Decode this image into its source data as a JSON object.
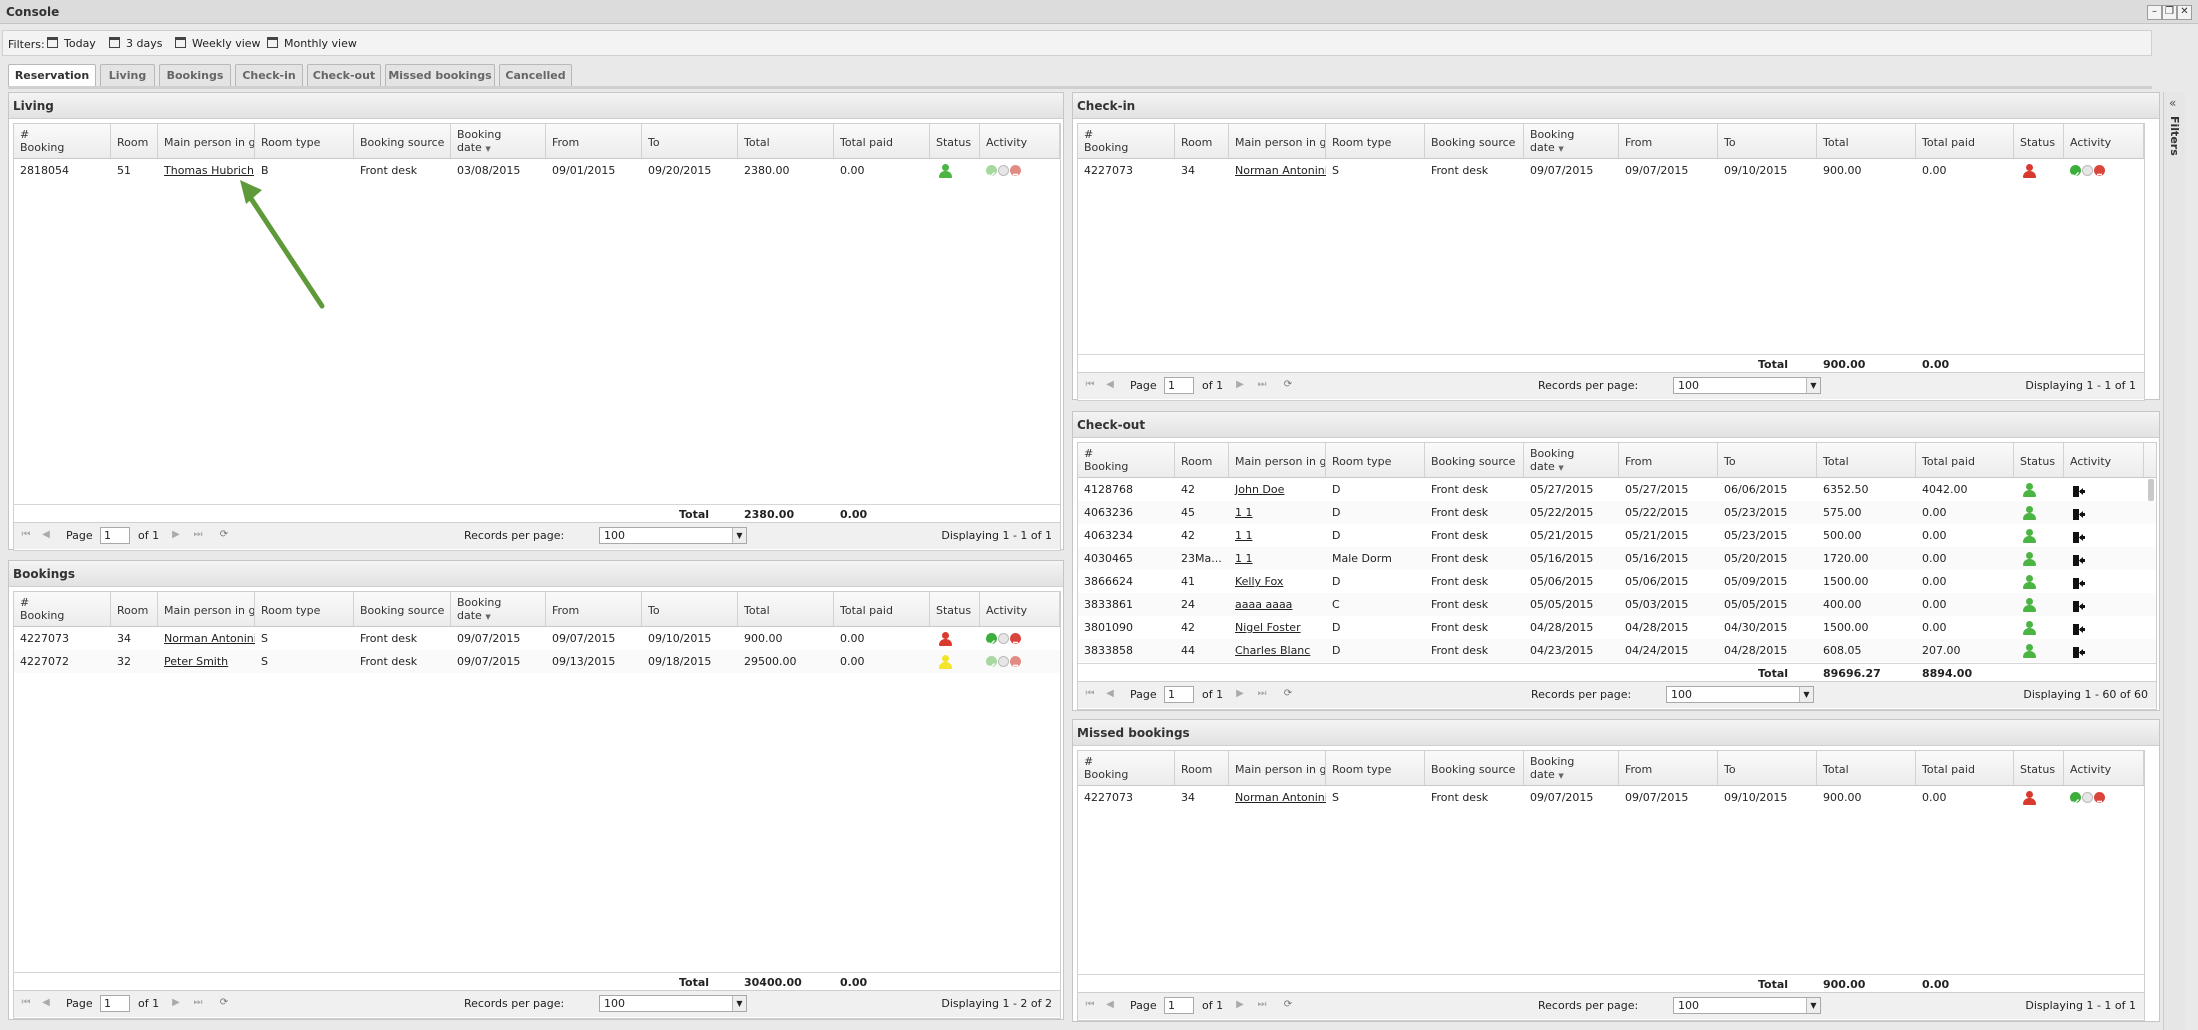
{
  "window": {
    "title": "Console"
  },
  "filters": {
    "label": "Filters:",
    "items": [
      {
        "label": "Today",
        "icon": "calendar-icon"
      },
      {
        "label": "3 days",
        "icon": "calendar-icon"
      },
      {
        "label": "Weekly view",
        "icon": "calendar-icon"
      },
      {
        "label": "Monthly view",
        "icon": "calendar-icon"
      }
    ]
  },
  "tabs": [
    "Reservation",
    "Living",
    "Bookings",
    "Check-in",
    "Check-out",
    "Missed bookings",
    "Cancelled"
  ],
  "active_tab": "Reservation",
  "side_panel": {
    "label": "Filters",
    "collapse": "«"
  },
  "columns": [
    "#\nBooking",
    "Room",
    "Main person in gro",
    "Room type",
    "Booking source",
    "Booking\ndate",
    "From",
    "To",
    "Total",
    "Total paid",
    "Status",
    "Activity"
  ],
  "pager": {
    "page_label": "Page",
    "records_label": "Records per page:",
    "records_value": "100",
    "total_label": "Total"
  },
  "colors": {
    "status_green": "#4bb543",
    "status_red": "#d83a2e",
    "status_yellow": "#f2e52a",
    "accept": "#3cae3c",
    "reject": "#d9453c"
  },
  "panels": {
    "living": {
      "title": "Living",
      "rows": [
        {
          "booking": "2818054",
          "room": "51",
          "person": "Thomas Hubrich",
          "type": "B",
          "source": "Front desk",
          "date": "03/08/2015",
          "from": "09/01/2015",
          "to": "09/20/2015",
          "total": "2380.00",
          "paid": "0.00",
          "status": "green",
          "activity": "faded"
        }
      ],
      "total": "2380.00",
      "total_paid": "0.00",
      "page": "1",
      "of": "of 1",
      "displaying": "Displaying 1 - 1 of 1"
    },
    "bookings": {
      "title": "Bookings",
      "rows": [
        {
          "booking": "4227073",
          "room": "34",
          "person": "Norman Antonini",
          "type": "S",
          "source": "Front desk",
          "date": "09/07/2015",
          "from": "09/07/2015",
          "to": "09/10/2015",
          "total": "900.00",
          "paid": "0.00",
          "status": "red",
          "activity": "full"
        },
        {
          "booking": "4227072",
          "room": "32",
          "person": "Peter Smith",
          "type": "S",
          "source": "Front desk",
          "date": "09/07/2015",
          "from": "09/13/2015",
          "to": "09/18/2015",
          "total": "29500.00",
          "paid": "0.00",
          "status": "yellow",
          "activity": "faded"
        }
      ],
      "total": "30400.00",
      "total_paid": "0.00",
      "page": "1",
      "of": "of 1",
      "displaying": "Displaying 1 - 2 of 2"
    },
    "checkin": {
      "title": "Check-in",
      "rows": [
        {
          "booking": "4227073",
          "room": "34",
          "person": "Norman Antonini",
          "type": "S",
          "source": "Front desk",
          "date": "09/07/2015",
          "from": "09/07/2015",
          "to": "09/10/2015",
          "total": "900.00",
          "paid": "0.00",
          "status": "red",
          "activity": "full"
        }
      ],
      "total": "900.00",
      "total_paid": "0.00",
      "page": "1",
      "of": "of 1",
      "displaying": "Displaying 1 - 1 of 1"
    },
    "checkout": {
      "title": "Check-out",
      "rows": [
        {
          "booking": "4128768",
          "room": "42",
          "person": "John Doe",
          "type": "D",
          "source": "Front desk",
          "date": "05/27/2015",
          "from": "05/27/2015",
          "to": "06/06/2015",
          "total": "6352.50",
          "paid": "4042.00",
          "status": "green",
          "activity": "exit"
        },
        {
          "booking": "4063236",
          "room": "45",
          "person": "1 1",
          "type": "D",
          "source": "Front desk",
          "date": "05/22/2015",
          "from": "05/22/2015",
          "to": "05/23/2015",
          "total": "575.00",
          "paid": "0.00",
          "status": "green",
          "activity": "exit"
        },
        {
          "booking": "4063234",
          "room": "42",
          "person": "1 1",
          "type": "D",
          "source": "Front desk",
          "date": "05/21/2015",
          "from": "05/21/2015",
          "to": "05/23/2015",
          "total": "500.00",
          "paid": "0.00",
          "status": "green",
          "activity": "exit"
        },
        {
          "booking": "4030465",
          "room": "23Ma...",
          "person": "1 1",
          "type": "Male Dorm",
          "source": "Front desk",
          "date": "05/16/2015",
          "from": "05/16/2015",
          "to": "05/20/2015",
          "total": "1720.00",
          "paid": "0.00",
          "status": "green",
          "activity": "exit"
        },
        {
          "booking": "3866624",
          "room": "41",
          "person": "Kelly Fox",
          "type": "D",
          "source": "Front desk",
          "date": "05/06/2015",
          "from": "05/06/2015",
          "to": "05/09/2015",
          "total": "1500.00",
          "paid": "0.00",
          "status": "green",
          "activity": "exit"
        },
        {
          "booking": "3833861",
          "room": "24",
          "person": "aaaa aaaa",
          "type": "C",
          "source": "Front desk",
          "date": "05/05/2015",
          "from": "05/03/2015",
          "to": "05/05/2015",
          "total": "400.00",
          "paid": "0.00",
          "status": "green",
          "activity": "exit"
        },
        {
          "booking": "3801090",
          "room": "42",
          "person": "Nigel Foster",
          "type": "D",
          "source": "Front desk",
          "date": "04/28/2015",
          "from": "04/28/2015",
          "to": "04/30/2015",
          "total": "1500.00",
          "paid": "0.00",
          "status": "green",
          "activity": "exit"
        },
        {
          "booking": "3833858",
          "room": "44",
          "person": "Charles Blanc",
          "type": "D",
          "source": "Front desk",
          "date": "04/23/2015",
          "from": "04/24/2015",
          "to": "04/28/2015",
          "total": "608.05",
          "paid": "207.00",
          "status": "green",
          "activity": "exit"
        }
      ],
      "total": "89696.27",
      "total_paid": "8894.00",
      "page": "1",
      "of": "of 1",
      "displaying": "Displaying 1 - 60 of 60"
    },
    "missed": {
      "title": "Missed bookings",
      "rows": [
        {
          "booking": "4227073",
          "room": "34",
          "person": "Norman Antonini",
          "type": "S",
          "source": "Front desk",
          "date": "09/07/2015",
          "from": "09/07/2015",
          "to": "09/10/2015",
          "total": "900.00",
          "paid": "0.00",
          "status": "red",
          "activity": "full"
        }
      ],
      "total": "900.00",
      "total_paid": "0.00",
      "page": "1",
      "of": "of 1",
      "displaying": "Displaying 1 - 1 of 1"
    }
  }
}
